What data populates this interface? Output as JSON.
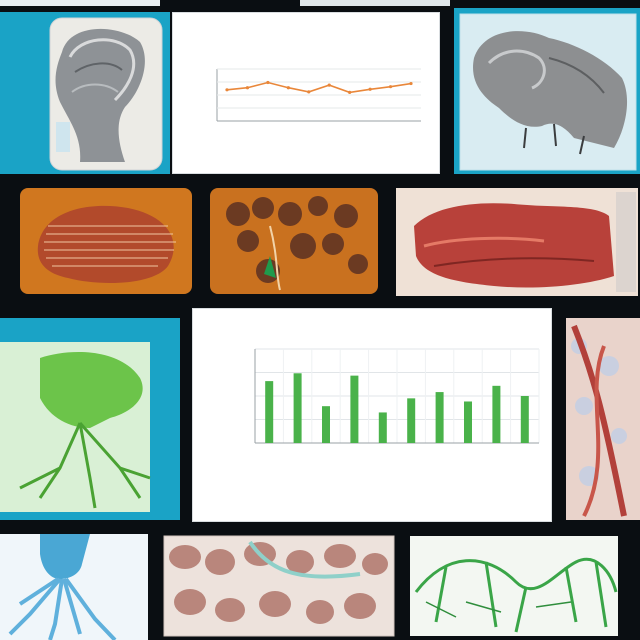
{
  "colors": {
    "background": "#0a0e12",
    "teal": "#1aa3c6",
    "bar_green": "#4ab24a",
    "line_orange": "#e9873a"
  },
  "images": [
    {
      "name": "gray-fibrous-cast",
      "description": ""
    },
    {
      "name": "gray-lizard-skin-model",
      "description": ""
    },
    {
      "name": "orange-striated-specimen",
      "description": ""
    },
    {
      "name": "orange-cellular-tissue",
      "description": ""
    },
    {
      "name": "red-layered-tissue",
      "description": ""
    },
    {
      "name": "green-branching-structure",
      "description": ""
    },
    {
      "name": "red-vessel-network",
      "description": ""
    },
    {
      "name": "blue-root-structure",
      "description": ""
    },
    {
      "name": "pink-cell-mosaic",
      "description": ""
    },
    {
      "name": "green-vessel-network",
      "description": ""
    }
  ],
  "chart_data": [
    {
      "type": "line",
      "title": "",
      "xlabel": "",
      "ylabel": "",
      "categories": [
        "",
        "",
        "",
        "",
        "",
        "",
        "",
        "",
        "",
        ""
      ],
      "series": [
        {
          "values": [
            6,
            6.4,
            7.4,
            6.4,
            5.6,
            6.9,
            5.5,
            6.1,
            6.6,
            7.2
          ]
        }
      ],
      "ylim": [
        0,
        10
      ],
      "grid": true
    },
    {
      "type": "bar",
      "title": "",
      "xlabel": "",
      "ylabel": "",
      "categories": [
        "",
        "",
        "",
        "",
        "",
        "",
        "",
        "",
        "",
        ""
      ],
      "series": [
        {
          "values": [
            79,
            89,
            47,
            86,
            39,
            57,
            65,
            53,
            73,
            60
          ]
        }
      ],
      "ylim": [
        0,
        120
      ],
      "grid": true
    }
  ]
}
